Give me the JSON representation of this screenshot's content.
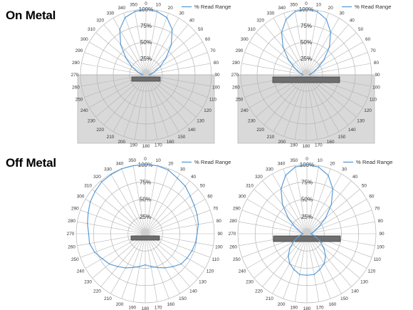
{
  "sections": {
    "on_metal": "On Metal",
    "off_metal": "Off Metal"
  },
  "colors": {
    "series": "#5b9bd5",
    "grid": "#b4b4b4",
    "metal_shade": "#d9d9d9",
    "tag": "#6e6e6e"
  },
  "chart_data": [
    {
      "type": "polar-line",
      "group": "On Metal",
      "legend": "% Read Range",
      "legend_position": "top-right",
      "angle_ticks": [
        "0",
        "10",
        "20",
        "30",
        "40",
        "50",
        "60",
        "70",
        "80",
        "90",
        "100",
        "110",
        "120",
        "130",
        "140",
        "150",
        "160",
        "170",
        "180",
        "190",
        "200",
        "210",
        "220",
        "230",
        "240",
        "250",
        "260",
        "270",
        "280",
        "290",
        "300",
        "310",
        "320",
        "330",
        "340",
        "350"
      ],
      "radial_ticks": [
        "25%",
        "50%",
        "75%",
        "100%"
      ],
      "rlim": [
        0,
        100
      ],
      "metal_plate": true,
      "tag_size": "small",
      "series": [
        {
          "name": "% Read Range",
          "angles": [
            0,
            10,
            20,
            30,
            40,
            50,
            60,
            70,
            80,
            90,
            270,
            280,
            290,
            300,
            310,
            320,
            330,
            340,
            350
          ],
          "values": [
            100,
            98,
            93,
            80,
            60,
            40,
            25,
            14,
            8,
            5,
            5,
            8,
            14,
            25,
            40,
            60,
            80,
            93,
            98
          ]
        }
      ]
    },
    {
      "type": "polar-line",
      "group": "On Metal",
      "legend": "% Read Range",
      "legend_position": "top-right",
      "angle_ticks": [
        "0",
        "10",
        "20",
        "30",
        "40",
        "50",
        "60",
        "70",
        "80",
        "90",
        "100",
        "110",
        "120",
        "130",
        "140",
        "150",
        "160",
        "170",
        "180",
        "190",
        "200",
        "210",
        "220",
        "230",
        "240",
        "250",
        "260",
        "270",
        "280",
        "290",
        "300",
        "310",
        "320",
        "330",
        "340",
        "350"
      ],
      "radial_ticks": [
        "25%",
        "50%",
        "75%",
        "100%"
      ],
      "rlim": [
        0,
        100
      ],
      "metal_plate": true,
      "tag_size": "large",
      "series": [
        {
          "name": "% Read Range",
          "angles": [
            0,
            10,
            20,
            30,
            40,
            50,
            60,
            70,
            80,
            90,
            270,
            280,
            290,
            300,
            310,
            320,
            330,
            340,
            350
          ],
          "values": [
            100,
            98,
            90,
            75,
            55,
            35,
            20,
            12,
            7,
            5,
            5,
            7,
            12,
            20,
            35,
            55,
            75,
            90,
            98
          ]
        }
      ]
    },
    {
      "type": "polar-line",
      "group": "Off Metal",
      "legend": "% Read Range",
      "legend_position": "top-right",
      "angle_ticks": [
        "0",
        "10",
        "20",
        "30",
        "40",
        "50",
        "60",
        "70",
        "80",
        "90",
        "100",
        "110",
        "120",
        "130",
        "140",
        "150",
        "160",
        "170",
        "180",
        "190",
        "200",
        "210",
        "220",
        "230",
        "240",
        "250",
        "260",
        "270",
        "280",
        "290",
        "300",
        "310",
        "320",
        "330",
        "340",
        "350"
      ],
      "radial_ticks": [
        "25%",
        "50%",
        "75%",
        "100%"
      ],
      "rlim": [
        0,
        100
      ],
      "metal_plate": false,
      "tag_size": "small",
      "series": [
        {
          "name": "% Read Range",
          "angles": [
            0,
            10,
            20,
            30,
            40,
            50,
            60,
            70,
            80,
            90,
            100,
            110,
            120,
            130,
            140,
            150,
            160,
            170,
            180,
            190,
            200,
            210,
            220,
            230,
            240,
            250,
            260,
            270,
            280,
            290,
            300,
            310,
            320,
            330,
            340,
            350
          ],
          "values": [
            100,
            100,
            98,
            93,
            90,
            85,
            82,
            80,
            78,
            75,
            74,
            72,
            70,
            68,
            62,
            57,
            52,
            48,
            45,
            48,
            52,
            57,
            62,
            68,
            72,
            78,
            82,
            82,
            85,
            88,
            92,
            95,
            98,
            99,
            100,
            100
          ]
        }
      ]
    },
    {
      "type": "polar-line",
      "group": "Off Metal",
      "legend": "% Read Range",
      "legend_position": "top-right",
      "angle_ticks": [
        "0",
        "10",
        "20",
        "30",
        "40",
        "50",
        "60",
        "70",
        "80",
        "90",
        "100",
        "110",
        "120",
        "130",
        "140",
        "150",
        "160",
        "170",
        "180",
        "190",
        "200",
        "210",
        "220",
        "230",
        "240",
        "250",
        "260",
        "270",
        "280",
        "290",
        "300",
        "310",
        "320",
        "330",
        "340",
        "350"
      ],
      "radial_ticks": [
        "25%",
        "50%",
        "75%",
        "100%"
      ],
      "rlim": [
        0,
        100
      ],
      "metal_plate": false,
      "tag_size": "large",
      "series": [
        {
          "name": "% Read Range",
          "angles": [
            0,
            10,
            20,
            30,
            40,
            50,
            60,
            70,
            80,
            90,
            100,
            110,
            120,
            130,
            140,
            150,
            160,
            170,
            180,
            190,
            200,
            210,
            220,
            230,
            240,
            250,
            260,
            270,
            280,
            290,
            300,
            310,
            320,
            330,
            340,
            350
          ],
          "values": [
            100,
            98,
            90,
            75,
            55,
            35,
            20,
            12,
            8,
            6,
            8,
            14,
            22,
            32,
            42,
            50,
            55,
            60,
            60,
            60,
            55,
            50,
            42,
            32,
            22,
            14,
            8,
            6,
            8,
            12,
            20,
            35,
            55,
            75,
            90,
            98
          ]
        }
      ]
    }
  ]
}
